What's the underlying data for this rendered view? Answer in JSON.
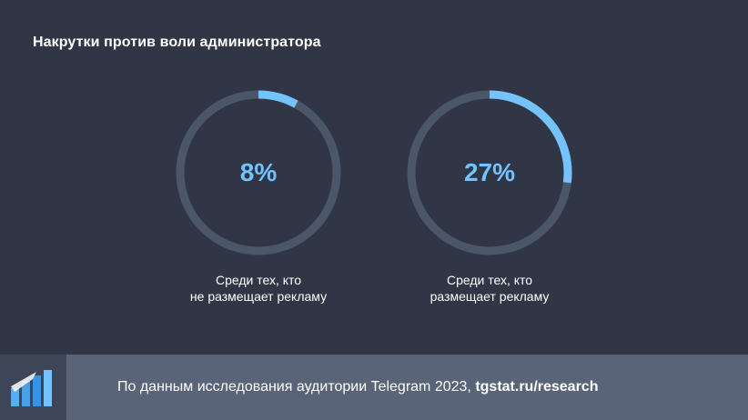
{
  "chart_data": {
    "type": "donut",
    "title": "Накрутки против воли администратора",
    "series": [
      {
        "name": "Среди тех, кто не размещает рекламу",
        "caption_lines": [
          "Среди тех, кто",
          "не размещает рекламу"
        ],
        "value": 8,
        "label": "8%"
      },
      {
        "name": "Среди тех, кто размещает рекламу",
        "caption_lines": [
          "Среди тех, кто",
          "размещает рекламу"
        ],
        "value": 27,
        "label": "27%"
      }
    ],
    "max": 100
  },
  "colors": {
    "background": "#303645",
    "track": "#4b5669",
    "accent": "#74c3ff",
    "footer": "#5a6479",
    "logo_bg": "#3e4557"
  },
  "footer": {
    "text": "По данным исследования аудитории Telegram 2023, ",
    "link": "tgstat.ru/research",
    "logo_icon": "tgstat-logo-icon"
  }
}
